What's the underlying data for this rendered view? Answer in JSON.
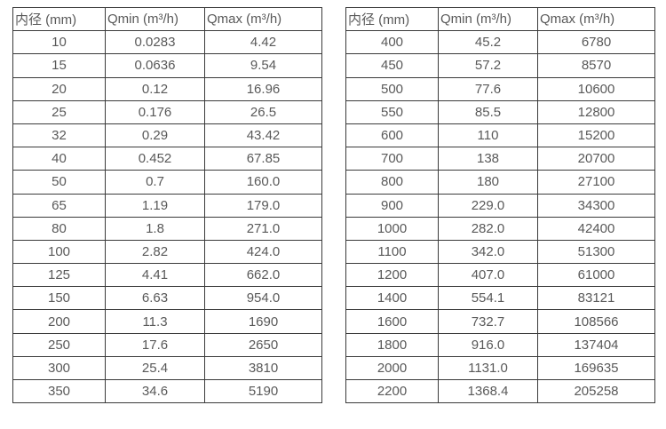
{
  "page": {
    "background": "#ffffff"
  },
  "colors": {
    "text": "#595959",
    "border": "#3a3a3a"
  },
  "tables": [
    {
      "name": "flow-table-left",
      "headers": [
        "内径 (mm)",
        "Qmin (m³/h)",
        "Qmax (m³/h)"
      ],
      "rows": [
        [
          "10",
          "0.0283",
          "4.42"
        ],
        [
          "15",
          "0.0636",
          "9.54"
        ],
        [
          "20",
          "0.12",
          "16.96"
        ],
        [
          "25",
          "0.176",
          "26.5"
        ],
        [
          "32",
          "0.29",
          "43.42"
        ],
        [
          "40",
          "0.452",
          "67.85"
        ],
        [
          "50",
          "0.7",
          "160.0"
        ],
        [
          "65",
          "1.19",
          "179.0"
        ],
        [
          "80",
          "1.8",
          "271.0"
        ],
        [
          "100",
          "2.82",
          "424.0"
        ],
        [
          "125",
          "4.41",
          "662.0"
        ],
        [
          "150",
          "6.63",
          "954.0"
        ],
        [
          "200",
          "11.3",
          "1690"
        ],
        [
          "250",
          "17.6",
          "2650"
        ],
        [
          "300",
          "25.4",
          "3810"
        ],
        [
          "350",
          "34.6",
          "5190"
        ]
      ]
    },
    {
      "name": "flow-table-right",
      "headers": [
        "内径 (mm)",
        "Qmin (m³/h)",
        "Qmax (m³/h)"
      ],
      "rows": [
        [
          "400",
          "45.2",
          "6780"
        ],
        [
          "450",
          "57.2",
          "8570"
        ],
        [
          "500",
          "77.6",
          "10600"
        ],
        [
          "550",
          "85.5",
          "12800"
        ],
        [
          "600",
          "110",
          "15200"
        ],
        [
          "700",
          "138",
          "20700"
        ],
        [
          "800",
          "180",
          "27100"
        ],
        [
          "900",
          "229.0",
          "34300"
        ],
        [
          "1000",
          "282.0",
          "42400"
        ],
        [
          "1100",
          "342.0",
          "51300"
        ],
        [
          "1200",
          "407.0",
          "61000"
        ],
        [
          "1400",
          "554.1",
          "83121"
        ],
        [
          "1600",
          "732.7",
          "108566"
        ],
        [
          "1800",
          "916.0",
          "137404"
        ],
        [
          "2000",
          "1131.0",
          "169635"
        ],
        [
          "2200",
          "1368.4",
          "205258"
        ]
      ]
    }
  ]
}
